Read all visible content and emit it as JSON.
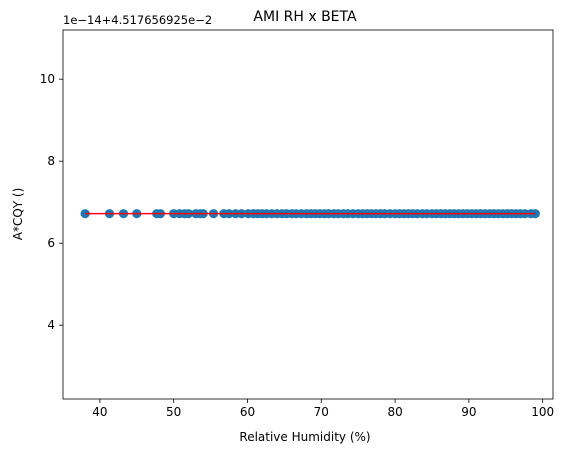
{
  "chart_data": {
    "type": "scatter",
    "title": "AMI RH x BETA",
    "xlabel": "Relative Humidity (%)",
    "ylabel": "A*CQY ()",
    "offset_label": "1e−14+4.517656925e−2",
    "xlim": [
      35.0,
      101.4
    ],
    "ylim": [
      2.2,
      11.2
    ],
    "x_ticks": [
      40,
      50,
      60,
      70,
      80,
      90,
      100
    ],
    "y_ticks": [
      4,
      6,
      8,
      10
    ],
    "grid": false,
    "colors": {
      "points": "#1f77b4",
      "fit_line": "#ff0000",
      "axis": "#000000"
    },
    "fit_line": {
      "x": [
        38,
        99
      ],
      "y": [
        6.72,
        6.72
      ]
    },
    "points": {
      "y": 6.72,
      "x": [
        38,
        41.3,
        43.2,
        45,
        47.7,
        48.2,
        50,
        50.8,
        51.5,
        52,
        53,
        53.6,
        54,
        55.4,
        56.8,
        57.5,
        58.4,
        59.2,
        60.1,
        60.8,
        61.4,
        62,
        62.6,
        63.3,
        64,
        64.7,
        65.3,
        66,
        66.6,
        67.3,
        68,
        68.6,
        69.2,
        69.8,
        70.4,
        71,
        71.7,
        72.3,
        73,
        73.6,
        74.3,
        75,
        75.6,
        76.2,
        76.8,
        77.4,
        78,
        78.6,
        79.3,
        80,
        80.6,
        81.2,
        81.8,
        82.4,
        83,
        83.7,
        84.3,
        85,
        85.6,
        86.2,
        86.8,
        87.4,
        88,
        88.6,
        89.2,
        89.8,
        90.4,
        91,
        91.6,
        92.2,
        92.8,
        93.4,
        94,
        94.6,
        95.2,
        95.8,
        96.4,
        97,
        97.6,
        98.4,
        99
      ]
    }
  }
}
